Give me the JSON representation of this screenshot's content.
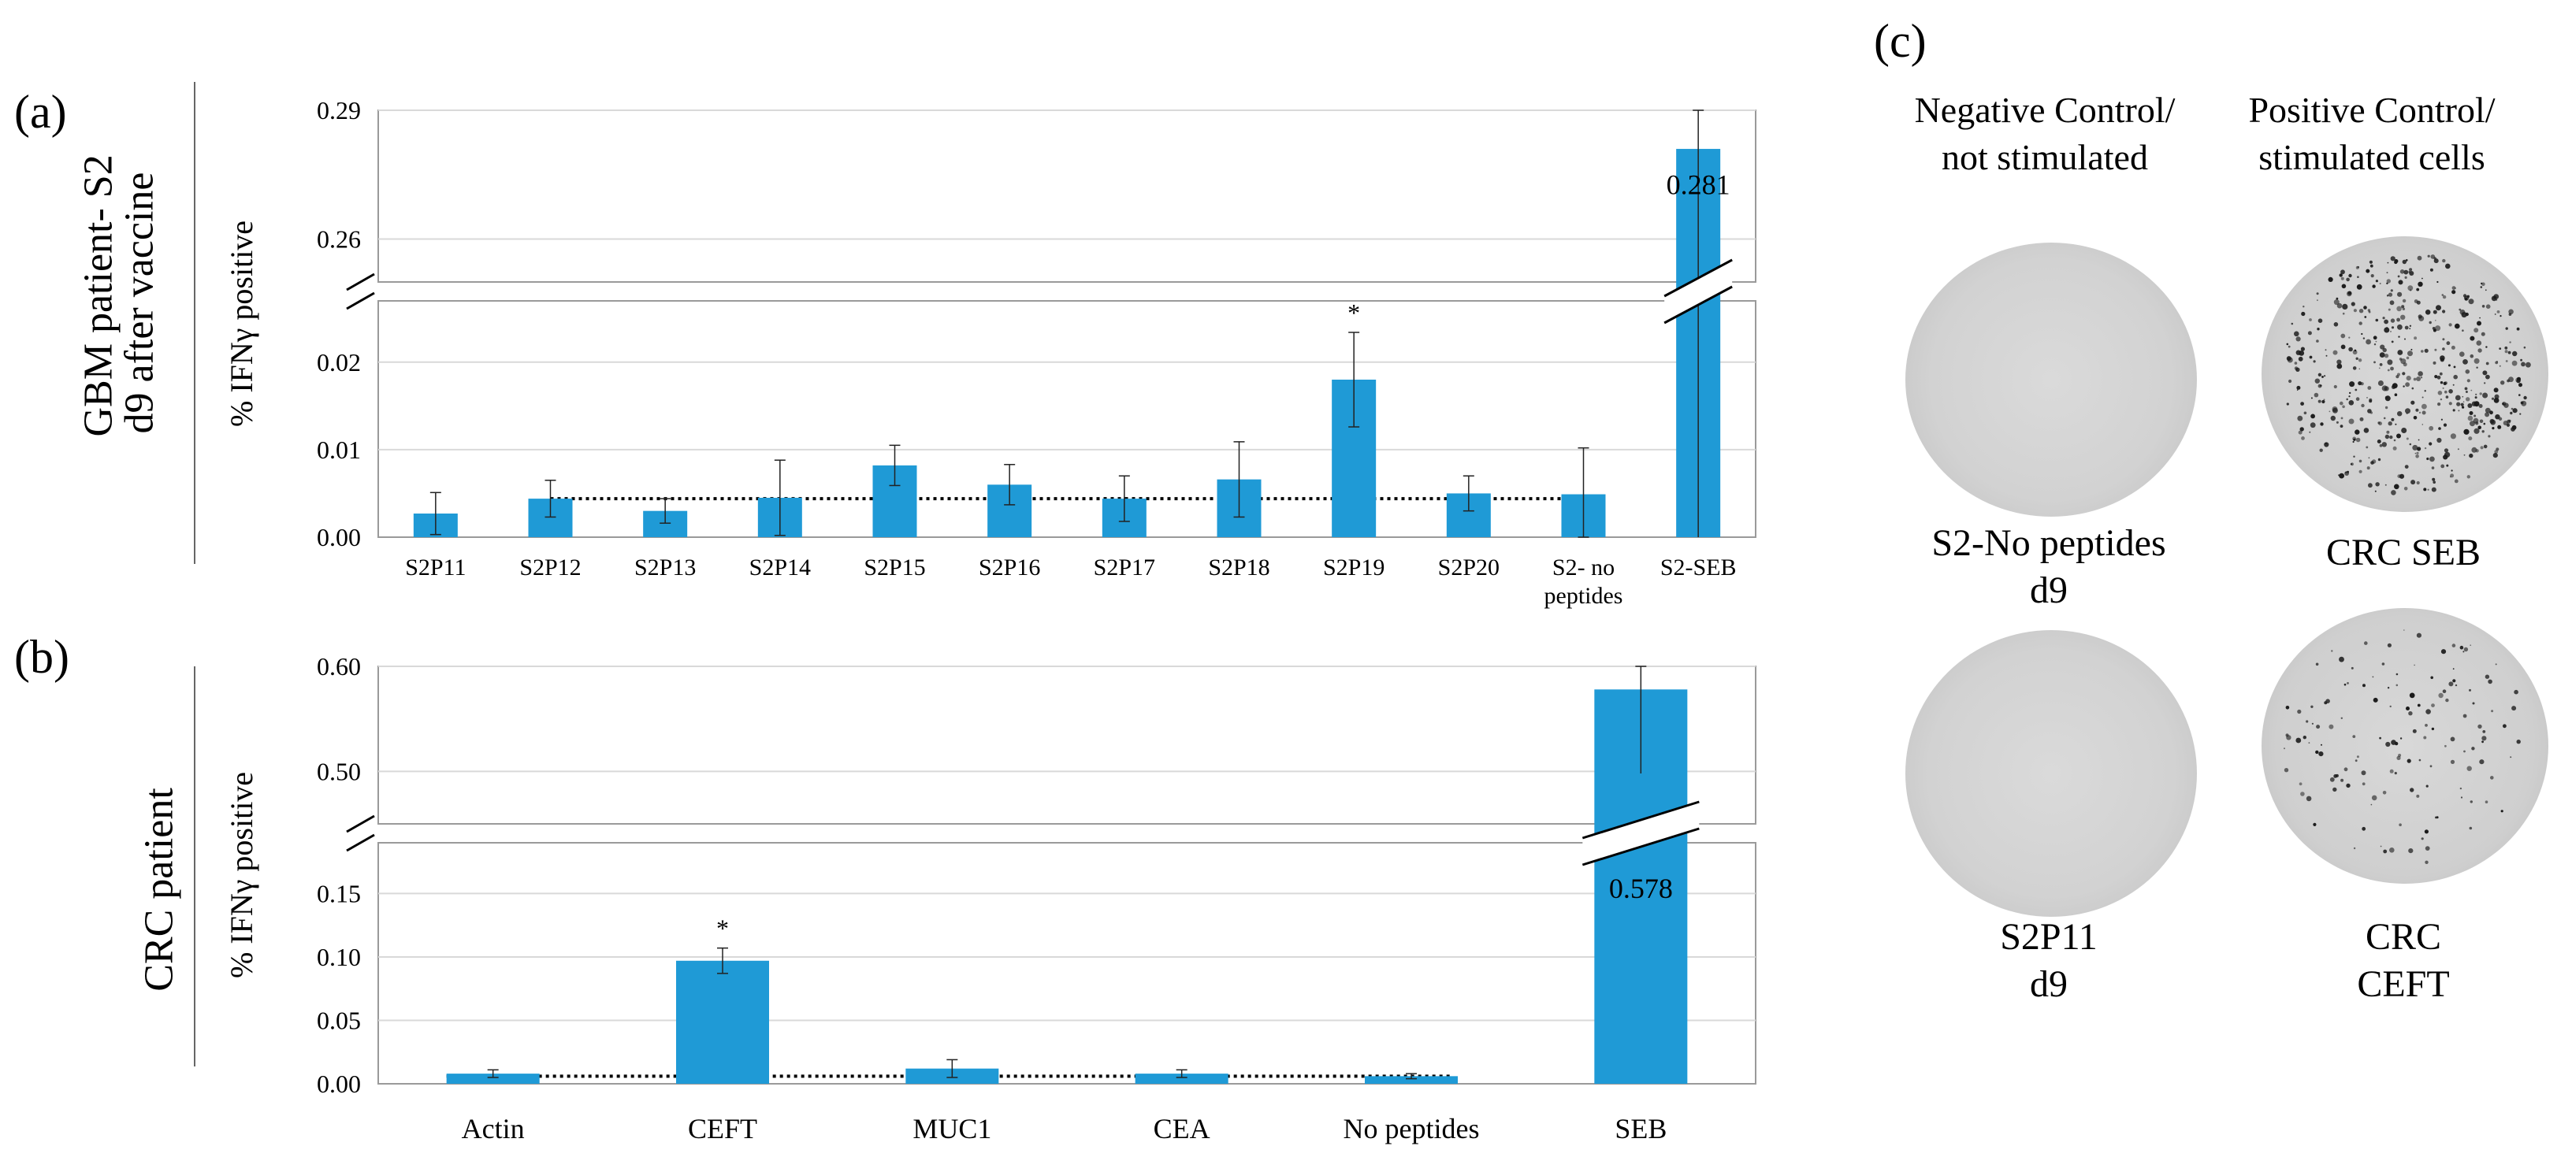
{
  "panel_labels": {
    "a": "(a)",
    "b": "(b)",
    "c": "(c)"
  },
  "side_labels": {
    "a_line1": "GBM patient- S2",
    "a_line2": "d9 after vaccine",
    "b": "CRC patient"
  },
  "chart_data": [
    {
      "type": "bar",
      "panel": "(a)",
      "ylabel": "% IFNγ positive",
      "categories": [
        "S2P11",
        "S2P12",
        "S2P13",
        "S2P14",
        "S2P15",
        "S2P16",
        "S2P17",
        "S2P18",
        "S2P19",
        "S2P20",
        "S2- no peptides",
        "S2-SEB"
      ],
      "values": [
        0.0027,
        0.0044,
        0.003,
        0.0045,
        0.0082,
        0.006,
        0.0044,
        0.0066,
        0.018,
        0.005,
        0.0049,
        0.281
      ],
      "errors": [
        0.0024,
        0.0021,
        0.0014,
        0.0043,
        0.0023,
        0.0023,
        0.0026,
        0.0043,
        0.0054,
        0.002,
        0.0053,
        0.012
      ],
      "significant": [
        "",
        "",
        "",
        "",
        "",
        "",
        "",
        "",
        "*",
        "",
        "",
        ""
      ],
      "data_label": {
        "category": "S2-SEB",
        "text": "0.281"
      },
      "y_ticks_lower": [
        "0.00",
        "0.01",
        "0.02"
      ],
      "y_ticks_upper": [
        "0.26",
        "0.29"
      ],
      "ylim_lower": [
        0,
        0.027
      ],
      "ylim_upper": [
        0.25,
        0.29
      ],
      "axis_break": true,
      "baseline": 0.0044,
      "bar_color": "#1f9ad6",
      "grid": true
    },
    {
      "type": "bar",
      "panel": "(b)",
      "ylabel": "% IFNγ positive",
      "categories": [
        "Actin",
        "CEFT",
        "MUC1",
        "CEA",
        "No peptides",
        "SEB"
      ],
      "values": [
        0.008,
        0.097,
        0.012,
        0.008,
        0.006,
        0.578
      ],
      "errors": [
        0.003,
        0.01,
        0.007,
        0.003,
        0.002,
        0.08
      ],
      "significant": [
        "",
        "*",
        "",
        "",
        "",
        ""
      ],
      "data_label": {
        "category": "SEB",
        "text": "0.578"
      },
      "y_ticks_lower": [
        "0.00",
        "0.05",
        "0.10",
        "0.15"
      ],
      "y_ticks_upper": [
        "0.50",
        "0.60"
      ],
      "ylim_lower": [
        0,
        0.19
      ],
      "ylim_upper": [
        0.45,
        0.6
      ],
      "axis_break": true,
      "baseline": 0.006,
      "bar_color": "#1f9ad6",
      "grid": true
    }
  ],
  "panel_c": {
    "col1_line1": "Negative Control/",
    "col1_line2": "not stimulated",
    "col2_line1": "Positive Control/",
    "col2_line2": "stimulated cells",
    "captions": {
      "top_left_1": "S2-No peptides",
      "top_left_2": "d9",
      "top_right_1": "CRC SEB",
      "bottom_left_1": "S2P11",
      "bottom_left_2": "d9",
      "bottom_right_1": "CRC",
      "bottom_right_2": "CEFT"
    }
  }
}
